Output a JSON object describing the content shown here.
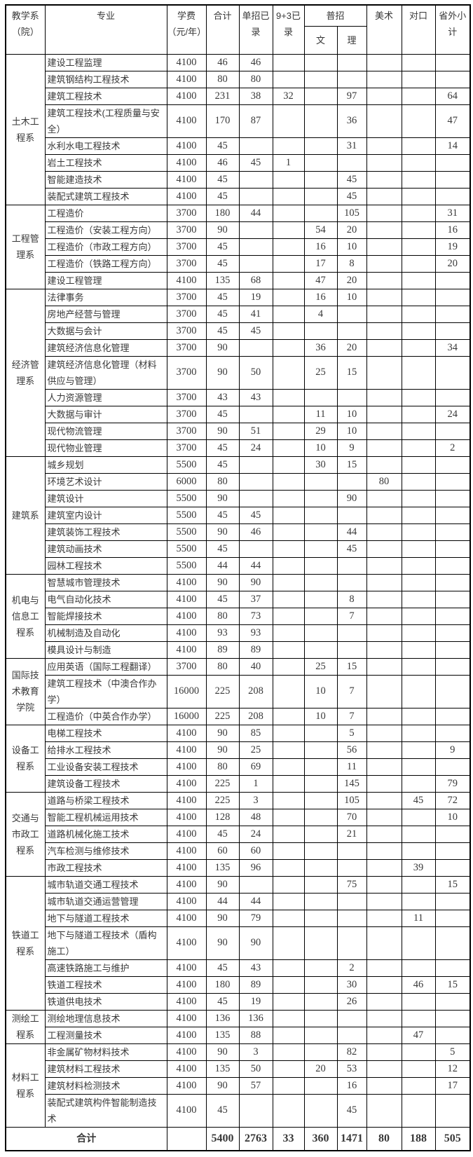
{
  "header": {
    "col_department": "教学系（院）",
    "col_major": "专业",
    "col_fee": "学费（元/年）",
    "col_total": "合计",
    "col_danzhao": "单招已录",
    "col_nine3": "9+3已录",
    "col_puzhao": "普招",
    "col_wen": "文",
    "col_li": "理",
    "col_art": "美术",
    "col_duikou": "对口",
    "col_province": "省外小计"
  },
  "columns_order": [
    "major",
    "fee",
    "total",
    "danzhao",
    "nine3",
    "wen",
    "li",
    "art",
    "duikou",
    "shengwai"
  ],
  "departments": [
    {
      "name": "土木工程系",
      "rows": [
        [
          "建设工程监理",
          "4100",
          "46",
          "46",
          "",
          "",
          "",
          "",
          "",
          ""
        ],
        [
          "建筑钢结构工程技术",
          "4100",
          "80",
          "80",
          "",
          "",
          "",
          "",
          "",
          ""
        ],
        [
          "建筑工程技术",
          "4100",
          "231",
          "38",
          "32",
          "",
          "97",
          "",
          "",
          "64"
        ],
        [
          "建筑工程技术(工程质量与安全）",
          "4100",
          "170",
          "87",
          "",
          "",
          "36",
          "",
          "",
          "47"
        ],
        [
          "水利水电工程技术",
          "4100",
          "45",
          "",
          "",
          "",
          "31",
          "",
          "",
          "14"
        ],
        [
          "岩土工程技术",
          "4100",
          "46",
          "45",
          "1",
          "",
          "",
          "",
          "",
          ""
        ],
        [
          "智能建造技术",
          "4100",
          "45",
          "",
          "",
          "",
          "45",
          "",
          "",
          ""
        ],
        [
          "装配式建筑工程技术",
          "4100",
          "45",
          "",
          "",
          "",
          "45",
          "",
          "",
          ""
        ]
      ]
    },
    {
      "name": "工程管理系",
      "rows": [
        [
          "工程造价",
          "3700",
          "180",
          "44",
          "",
          "",
          "105",
          "",
          "",
          "31"
        ],
        [
          "工程造价（安装工程方向）",
          "3700",
          "90",
          "",
          "",
          "54",
          "20",
          "",
          "",
          "16"
        ],
        [
          "工程造价（市政工程方向）",
          "3700",
          "45",
          "",
          "",
          "16",
          "10",
          "",
          "",
          "19"
        ],
        [
          "工程造价（铁路工程方向）",
          "3700",
          "45",
          "",
          "",
          "17",
          "8",
          "",
          "",
          "20"
        ],
        [
          "建设工程管理",
          "4100",
          "135",
          "68",
          "",
          "47",
          "20",
          "",
          "",
          ""
        ]
      ]
    },
    {
      "name": "经济管理系",
      "rows": [
        [
          "法律事务",
          "3700",
          "45",
          "19",
          "",
          "16",
          "10",
          "",
          "",
          ""
        ],
        [
          "房地产经营与管理",
          "3700",
          "45",
          "41",
          "",
          "4",
          "",
          "",
          "",
          ""
        ],
        [
          "大数据与会计",
          "3700",
          "45",
          "45",
          "",
          "",
          "",
          "",
          "",
          ""
        ],
        [
          "建筑经济信息化管理",
          "3700",
          "90",
          "",
          "",
          "36",
          "20",
          "",
          "",
          "34"
        ],
        [
          "建筑经济信息化管理（材料供应与管理）",
          "3700",
          "90",
          "50",
          "",
          "25",
          "15",
          "",
          "",
          ""
        ],
        [
          "人力资源管理",
          "3700",
          "43",
          "43",
          "",
          "",
          "",
          "",
          "",
          ""
        ],
        [
          "大数据与审计",
          "3700",
          "45",
          "",
          "",
          "11",
          "10",
          "",
          "",
          "24"
        ],
        [
          "现代物流管理",
          "3700",
          "90",
          "51",
          "",
          "29",
          "10",
          "",
          "",
          ""
        ],
        [
          "现代物业管理",
          "3700",
          "45",
          "24",
          "",
          "10",
          "9",
          "",
          "",
          "2"
        ]
      ]
    },
    {
      "name": "建筑系",
      "rows": [
        [
          "城乡规划",
          "5500",
          "45",
          "",
          "",
          "30",
          "15",
          "",
          "",
          ""
        ],
        [
          "环境艺术设计",
          "6000",
          "80",
          "",
          "",
          "",
          "",
          "80",
          "",
          ""
        ],
        [
          "建筑设计",
          "5500",
          "90",
          "",
          "",
          "",
          "90",
          "",
          "",
          ""
        ],
        [
          "建筑室内设计",
          "5500",
          "45",
          "45",
          "",
          "",
          "",
          "",
          "",
          ""
        ],
        [
          "建筑装饰工程技术",
          "5500",
          "90",
          "46",
          "",
          "",
          "44",
          "",
          "",
          ""
        ],
        [
          "建筑动画技术",
          "5500",
          "45",
          "",
          "",
          "",
          "45",
          "",
          "",
          ""
        ],
        [
          "园林工程技术",
          "5500",
          "44",
          "44",
          "",
          "",
          "",
          "",
          "",
          ""
        ]
      ]
    },
    {
      "name": "机电与信息工程系",
      "rows": [
        [
          "智慧城市管理技术",
          "4100",
          "90",
          "90",
          "",
          "",
          "",
          "",
          "",
          ""
        ],
        [
          "电气自动化技术",
          "4100",
          "45",
          "37",
          "",
          "",
          "8",
          "",
          "",
          ""
        ],
        [
          "智能焊接技术",
          "4100",
          "80",
          "73",
          "",
          "",
          "7",
          "",
          "",
          ""
        ],
        [
          "机械制造及自动化",
          "4100",
          "93",
          "93",
          "",
          "",
          "",
          "",
          "",
          ""
        ],
        [
          "模具设计与制造",
          "4100",
          "89",
          "89",
          "",
          "",
          "",
          "",
          "",
          ""
        ]
      ]
    },
    {
      "name": "国际技术教育学院",
      "rows": [
        [
          "应用英语（国际工程翻译）",
          "3700",
          "80",
          "40",
          "",
          "25",
          "15",
          "",
          "",
          ""
        ],
        [
          "建筑工程技术（中澳合作办学）",
          "16000",
          "225",
          "208",
          "",
          "10",
          "7",
          "",
          "",
          ""
        ],
        [
          "工程造价（中英合作办学）",
          "16000",
          "225",
          "208",
          "",
          "10",
          "7",
          "",
          "",
          ""
        ]
      ]
    },
    {
      "name": "设备工程系",
      "rows": [
        [
          "电梯工程技术",
          "4100",
          "90",
          "85",
          "",
          "",
          "5",
          "",
          "",
          ""
        ],
        [
          "给排水工程技术",
          "4100",
          "90",
          "25",
          "",
          "",
          "56",
          "",
          "",
          "9"
        ],
        [
          "工业设备安装工程技术",
          "4100",
          "80",
          "69",
          "",
          "",
          "11",
          "",
          "",
          ""
        ],
        [
          "建筑设备工程技术",
          "4100",
          "225",
          "1",
          "",
          "",
          "145",
          "",
          "",
          "79"
        ]
      ]
    },
    {
      "name": "交通与市政工程系",
      "rows": [
        [
          "道路与桥梁工程技术",
          "4100",
          "225",
          "3",
          "",
          "",
          "105",
          "",
          "45",
          "72"
        ],
        [
          "智能工程机械运用技术",
          "4100",
          "128",
          "48",
          "",
          "",
          "70",
          "",
          "",
          "10"
        ],
        [
          "道路机械化施工技术",
          "4100",
          "45",
          "24",
          "",
          "",
          "21",
          "",
          "",
          ""
        ],
        [
          "汽车检测与维修技术",
          "4100",
          "60",
          "60",
          "",
          "",
          "",
          "",
          "",
          ""
        ],
        [
          "市政工程技术",
          "4100",
          "135",
          "96",
          "",
          "",
          "",
          "",
          "39",
          ""
        ]
      ]
    },
    {
      "name": "铁道工程系",
      "rows": [
        [
          "城市轨道交通工程技术",
          "4100",
          "90",
          "",
          "",
          "",
          "75",
          "",
          "",
          "15"
        ],
        [
          "城市轨道交通运营管理",
          "4100",
          "44",
          "44",
          "",
          "",
          "",
          "",
          "",
          ""
        ],
        [
          "地下与隧道工程技术",
          "4100",
          "90",
          "79",
          "",
          "",
          "",
          "",
          "11",
          ""
        ],
        [
          "地下与隧道工程技术（盾构施工）",
          "4100",
          "90",
          "90",
          "",
          "",
          "",
          "",
          "",
          ""
        ],
        [
          "高速铁路施工与维护",
          "4100",
          "45",
          "43",
          "",
          "",
          "2",
          "",
          "",
          ""
        ],
        [
          "铁道工程技术",
          "4100",
          "180",
          "89",
          "",
          "",
          "30",
          "",
          "46",
          "15"
        ],
        [
          "铁道供电技术",
          "4100",
          "45",
          "19",
          "",
          "",
          "26",
          "",
          "",
          ""
        ]
      ]
    },
    {
      "name": "测绘工程系",
      "rows": [
        [
          "测绘地理信息技术",
          "4100",
          "136",
          "136",
          "",
          "",
          "",
          "",
          "",
          ""
        ],
        [
          "工程测量技术",
          "4100",
          "135",
          "88",
          "",
          "",
          "",
          "",
          "47",
          ""
        ]
      ]
    },
    {
      "name": "材料工程系",
      "rows": [
        [
          "非金属矿物材料技术",
          "4100",
          "90",
          "3",
          "",
          "",
          "82",
          "",
          "",
          "5"
        ],
        [
          "建筑材料工程技术",
          "4100",
          "135",
          "50",
          "",
          "20",
          "53",
          "",
          "",
          "12"
        ],
        [
          "建筑材料检测技术",
          "4100",
          "90",
          "57",
          "",
          "",
          "16",
          "",
          "",
          "17"
        ],
        [
          "装配式建筑构件智能制造技术",
          "4100",
          "45",
          "",
          "",
          "",
          "45",
          "",
          "",
          ""
        ]
      ]
    },
    {
      "name": "",
      "rows": []
    }
  ],
  "totals": {
    "label": "合计",
    "fee": "",
    "total": "5400",
    "danzhao": "2763",
    "nine3": "33",
    "wen": "360",
    "li": "1471",
    "art": "80",
    "duikou": "188",
    "shengwai": "505"
  },
  "colors": {
    "text": "#383838",
    "border": "#000000",
    "background": "#ffffff"
  }
}
